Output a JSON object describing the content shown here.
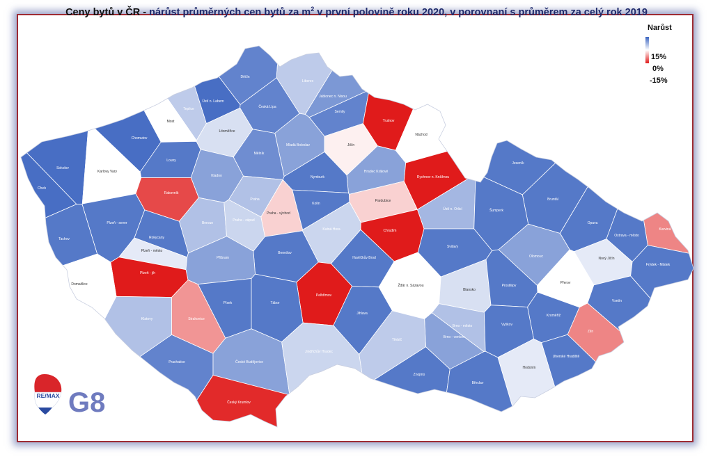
{
  "title": {
    "bold": "Ceny bytů v ČR - ",
    "rest_before_sup": "nárůst průměrných cen bytů za m",
    "sup": "2",
    "rest_after_sup": " v první polovině roku 2020, v porovnaní s průměrem za celý rok 2019"
  },
  "legend": {
    "title": "Narůst",
    "max_label": "15%",
    "mid_label": "0%",
    "min_label": "-15%",
    "color_max": "#3b64c0",
    "color_mid": "#ffffff",
    "color_min": "#e01b1b"
  },
  "logo": {
    "brand": "RE/MAX",
    "office": "G8"
  },
  "districts": [
    {
      "name": "Děčín",
      "level": 12
    },
    {
      "name": "Liberec",
      "level": 5
    },
    {
      "name": "Jablonec n. Nisou",
      "level": 10
    },
    {
      "name": "Ústí n. Labem",
      "level": 14
    },
    {
      "name": "Česká Lípa",
      "level": 12
    },
    {
      "name": "Semily",
      "level": 12
    },
    {
      "name": "Trutnov",
      "level": -15
    },
    {
      "name": "Náchod",
      "level": 0
    },
    {
      "name": "Teplice",
      "level": 5
    },
    {
      "name": "Most",
      "level": 0
    },
    {
      "name": "Litoměřice",
      "level": 3
    },
    {
      "name": "Mladá Boleslav",
      "level": 9
    },
    {
      "name": "Jičín",
      "level": -1
    },
    {
      "name": "Chomutov",
      "level": 14
    },
    {
      "name": "Mělník",
      "level": 11
    },
    {
      "name": "Hradec Králové",
      "level": 9
    },
    {
      "name": "Rychnov n. Kněžnou",
      "level": -15
    },
    {
      "name": "Sokolov",
      "level": 14
    },
    {
      "name": "Karlovy Vary",
      "level": 0
    },
    {
      "name": "Louny",
      "level": 13
    },
    {
      "name": "Kladno",
      "level": 9
    },
    {
      "name": "Nymburk",
      "level": 13
    },
    {
      "name": "Jeseník",
      "level": 13
    },
    {
      "name": "Cheb",
      "level": 14
    },
    {
      "name": "Rakovník",
      "level": -12
    },
    {
      "name": "Praha",
      "level": 6
    },
    {
      "name": "Praha - východ",
      "level": -3
    },
    {
      "name": "Kolín",
      "level": 13
    },
    {
      "name": "Pardubice",
      "level": -3
    },
    {
      "name": "Bruntál",
      "level": 13
    },
    {
      "name": "Ústí n. Orlicí",
      "level": 7
    },
    {
      "name": "Šumperk",
      "level": 13
    },
    {
      "name": "Opava",
      "level": 13
    },
    {
      "name": "Karviná",
      "level": -8
    },
    {
      "name": "Ostrava - město",
      "level": 13
    },
    {
      "name": "Plzeň - sever",
      "level": 13
    },
    {
      "name": "Beroun",
      "level": 6
    },
    {
      "name": "Praha - západ",
      "level": 4
    },
    {
      "name": "Kutná Hora",
      "level": 4
    },
    {
      "name": "Chrudim",
      "level": -15
    },
    {
      "name": "Tachov",
      "level": 13
    },
    {
      "name": "Rokycany",
      "level": 13
    },
    {
      "name": "Plzeň - město",
      "level": 2
    },
    {
      "name": "Benešov",
      "level": 13
    },
    {
      "name": "Havlíčkův Brod",
      "level": 13
    },
    {
      "name": "Svitavy",
      "level": 13
    },
    {
      "name": "Olomouc",
      "level": 9
    },
    {
      "name": "Nový Jičín",
      "level": 2
    },
    {
      "name": "Frýdek - Místek",
      "level": 13
    },
    {
      "name": "Příbram",
      "level": 9
    },
    {
      "name": "Plzeň - jih",
      "level": -15
    },
    {
      "name": "Domažlice",
      "level": 0
    },
    {
      "name": "Žďár n. Sázavou",
      "level": 0
    },
    {
      "name": "Blansko",
      "level": 3
    },
    {
      "name": "Prostějov",
      "level": 13
    },
    {
      "name": "Přerov",
      "level": 0
    },
    {
      "name": "Pelhřimov",
      "level": -15
    },
    {
      "name": "Písek",
      "level": 13
    },
    {
      "name": "Tábor",
      "level": 13
    },
    {
      "name": "Klatovy",
      "level": 6
    },
    {
      "name": "Strakonice",
      "level": -7
    },
    {
      "name": "Jihlava",
      "level": 13
    },
    {
      "name": "Vsetín",
      "level": 13
    },
    {
      "name": "Kroměříž",
      "level": 13
    },
    {
      "name": "Zlín",
      "level": -8
    },
    {
      "name": "Brno - město",
      "level": 6
    },
    {
      "name": "Brno - venkov",
      "level": 9
    },
    {
      "name": "Vyškov",
      "level": 13
    },
    {
      "name": "Třebíč",
      "level": 5
    },
    {
      "name": "Prachatice",
      "level": 12
    },
    {
      "name": "České Budějovice",
      "level": 9
    },
    {
      "name": "Jindřichův Hradec",
      "level": 4
    },
    {
      "name": "Uherské Hradiště",
      "level": 13
    },
    {
      "name": "Hodonín",
      "level": 2
    },
    {
      "name": "Znojmo",
      "level": 13
    },
    {
      "name": "Břeclav",
      "level": 13
    },
    {
      "name": "Český Krumlov",
      "level": -14
    }
  ]
}
